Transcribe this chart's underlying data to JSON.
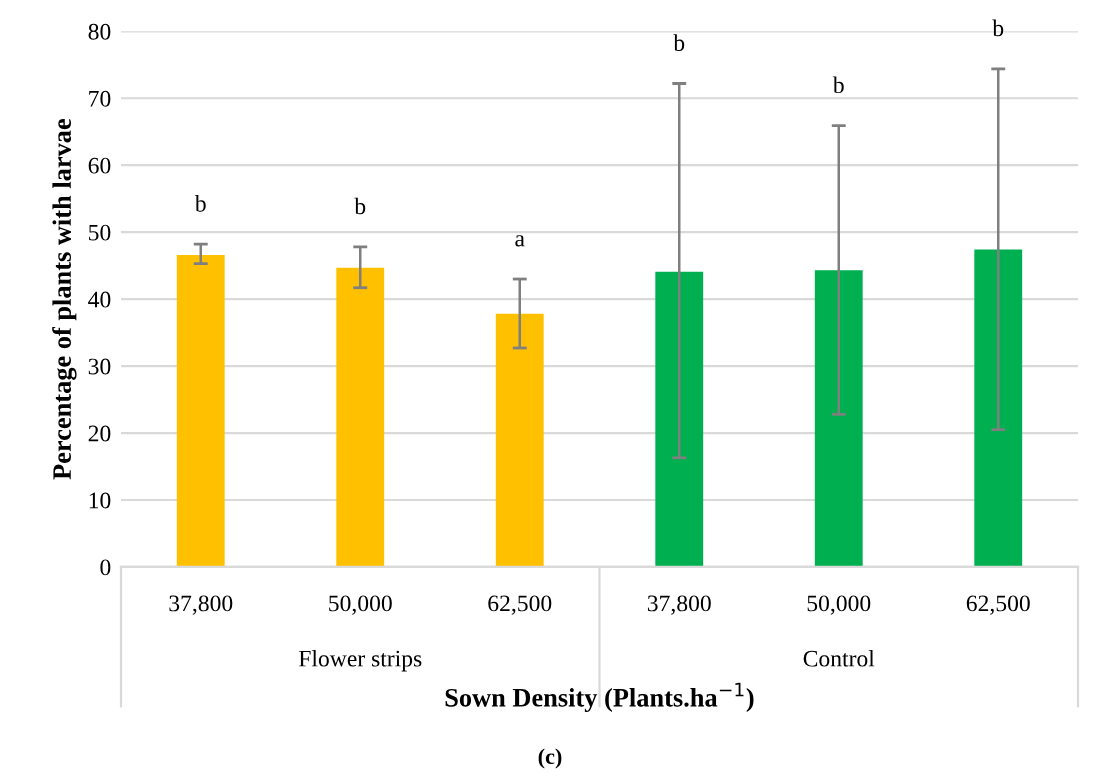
{
  "chart_data": {
    "type": "bar",
    "ylabel": "Percentage of plants with larvae",
    "xlabel": "Sown Density (Plants.ha$^{−1}$)",
    "categories": [
      "37,800",
      "50,000",
      "62,500",
      "37,800",
      "50,000",
      "62,500"
    ],
    "series": [
      {
        "color": "#ffc000",
        "values": [
          46.6,
          44.7,
          37.8,
          null,
          null,
          null
        ],
        "errors": [
          [
            45.3,
            48.2
          ],
          [
            41.7,
            47.8
          ],
          [
            32.7,
            43.0
          ],
          null,
          null,
          null
        ]
      },
      {
        "color": "#00b050",
        "values": [
          null,
          null,
          null,
          44.1,
          44.3,
          47.4
        ],
        "errors": [
          null,
          null,
          null,
          [
            16.3,
            72.2
          ],
          [
            22.8,
            65.9
          ],
          [
            20.5,
            74.4
          ]
        ]
      }
    ],
    "ylim": [
      0,
      80
    ],
    "yticks": [
      0,
      10,
      20,
      30,
      40,
      50,
      60,
      70,
      80
    ],
    "grid": "y",
    "annotations": [
      "b",
      "b",
      "a",
      "b",
      "b",
      "b",
      "Flower strips",
      "Control",
      "(c)"
    ]
  }
}
